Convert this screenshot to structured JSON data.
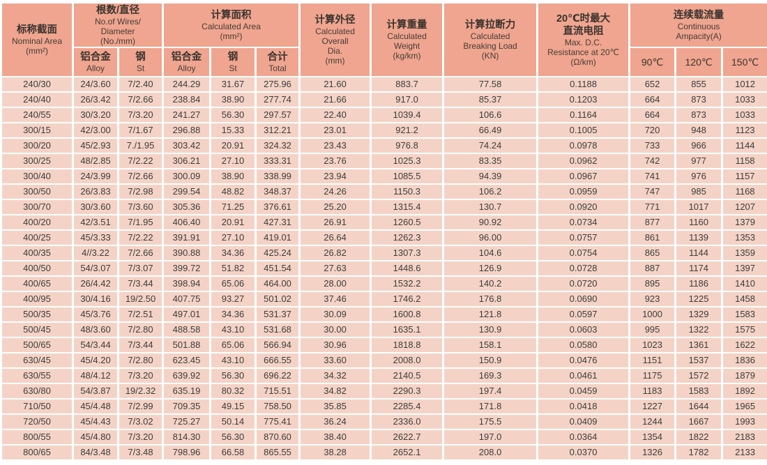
{
  "colors": {
    "header_bg": "#efa58f",
    "cell_bg": "#f4d3c6",
    "grid_lines": "#ffffff",
    "text": "#3c3c3c"
  },
  "table": {
    "header": {
      "nominal_area": {
        "zh": "标称截面",
        "en": "Nominal Area",
        "unit": "(mm²)"
      },
      "wires_diameter": {
        "zh": "根数/直径",
        "en1": "No.of Wires/",
        "en2": "Diameter",
        "unit": "(No./mm)"
      },
      "calculated_area": {
        "zh": "计算面积",
        "en": "Calculated Area",
        "unit": "(mm²)"
      },
      "overall_dia": {
        "zh": "计算外径",
        "en1": "Calculated",
        "en2": "Overall",
        "en3": "Dia.",
        "unit": "(mm)"
      },
      "weight": {
        "zh": "计算重量",
        "en1": "Calculated",
        "en2": "Weight",
        "unit": "(kg/km)"
      },
      "breaking_load": {
        "zh": "计算拉断力",
        "en1": "Calculated",
        "en2": "Breaking Load",
        "unit": "(KN)"
      },
      "dc_resistance": {
        "zh1": "20℃时最大",
        "zh2": "直流电阻",
        "en1": "Max. D.C.",
        "en2": "Resistance at 20℃",
        "unit": "(Ω/km)"
      },
      "ampacity": {
        "zh": "连续载流量",
        "en1": "Continuous",
        "en2": "Ampacity(A)"
      },
      "sub": {
        "alloy": {
          "zh": "铝合金",
          "en": "Alloy"
        },
        "steel": {
          "zh": "钢",
          "en": "St"
        },
        "total": {
          "zh": "合计",
          "en": "Total"
        },
        "t90": "90℃",
        "t120": "120℃",
        "t150": "150℃"
      }
    },
    "rows": [
      [
        "240/30",
        "24/3.60",
        "7/2.40",
        "244.29",
        "31.67",
        "275.96",
        "21.60",
        "883.7",
        "77.58",
        "0.1188",
        "652",
        "855",
        "1012"
      ],
      [
        "240/40",
        "26/3.42",
        "7/2.66",
        "238.84",
        "38.90",
        "277.74",
        "21.66",
        "917.0",
        "85.37",
        "0.1203",
        "664",
        "873",
        "1033"
      ],
      [
        "240/55",
        "30/3.20",
        "7/3.20",
        "241.27",
        "56.30",
        "297.57",
        "22.40",
        "1039.4",
        "106.6",
        "0.1164",
        "664",
        "873",
        "1033"
      ],
      [
        "300/15",
        "42/3.00",
        "7/1.67",
        "296.88",
        "15.33",
        "312.21",
        "23.01",
        "921.2",
        "66.49",
        "0.1005",
        "720",
        "948",
        "1123"
      ],
      [
        "300/20",
        "45/2.93",
        "7./1.95",
        "303.42",
        "20.91",
        "324.32",
        "23.43",
        "976.8",
        "74.24",
        "0.0978",
        "733",
        "966",
        "1144"
      ],
      [
        "300/25",
        "48/2.85",
        "7/2.22",
        "306.21",
        "27.10",
        "333.31",
        "23.76",
        "1025.3",
        "83.35",
        "0.0962",
        "742",
        "977",
        "1158"
      ],
      [
        "300/40",
        "24/3.99",
        "7/2.66",
        "300.09",
        "38.90",
        "338.99",
        "23.94",
        "1085.5",
        "94.39",
        "0.0967",
        "741",
        "976",
        "1157"
      ],
      [
        "300/50",
        "26/3.83",
        "7/2.98",
        "299.54",
        "48.82",
        "348.37",
        "24.26",
        "1150.3",
        "106.2",
        "0.0959",
        "747",
        "985",
        "1168"
      ],
      [
        "300/70",
        "30/3.60",
        "7/3.60",
        "305.36",
        "71.25",
        "376.61",
        "25.20",
        "1315.4",
        "130.7",
        "0.0920",
        "771",
        "1017",
        "1207"
      ],
      [
        "400/20",
        "42/3.51",
        "7/1.95",
        "406.40",
        "20.91",
        "427.31",
        "26.91",
        "1260.5",
        "90.92",
        "0.0734",
        "877",
        "1160",
        "1379"
      ],
      [
        "400/25",
        "45/3.33",
        "7/2.22",
        "391.91",
        "27.10",
        "419.01",
        "26.64",
        "1262.3",
        "96.00",
        "0.0757",
        "861",
        "1139",
        "1353"
      ],
      [
        "400/35",
        "4//3.22",
        "7/2.66",
        "390.88",
        "34.36",
        "425.24",
        "26.82",
        "1307.3",
        "104.6",
        "0.0754",
        "865",
        "1144",
        "1359"
      ],
      [
        "400/50",
        "54/3.07",
        "7/3.07",
        "399.72",
        "51.82",
        "451.54",
        "27.63",
        "1448.6",
        "126.9",
        "0.0728",
        "887",
        "1174",
        "1397"
      ],
      [
        "400/65",
        "26/4.42",
        "7/3.44",
        "398.94",
        "65.06",
        "464.00",
        "28.00",
        "1532.2",
        "140.2",
        "0.0720",
        "895",
        "1186",
        "1410"
      ],
      [
        "400/95",
        "30/4.16",
        "19/2.50",
        "407.75",
        "93.27",
        "501.02",
        "37.46",
        "1746.2",
        "176.8",
        "0.0690",
        "923",
        "1225",
        "1458"
      ],
      [
        "500/35",
        "45/3.76",
        "7/2.51",
        "497.01",
        "34.36",
        "531.37",
        "30.09",
        "1600.8",
        "121.8",
        "0.0597",
        "1000",
        "1329",
        "1583"
      ],
      [
        "500/45",
        "48/3.60",
        "7/2.80",
        "488.58",
        "43.10",
        "531.68",
        "30.00",
        "1635.1",
        "130.9",
        "0.0603",
        "995",
        "1322",
        "1575"
      ],
      [
        "500/65",
        "54/3.44",
        "7/3.44",
        "501.88",
        "65.06",
        "566.94",
        "30.96",
        "1818.8",
        "158.1",
        "0.0580",
        "1023",
        "1361",
        "1622"
      ],
      [
        "630/45",
        "45/4.20",
        "7/2.80",
        "623.45",
        "43.10",
        "666.55",
        "33.60",
        "2008.0",
        "150.9",
        "0.0476",
        "1151",
        "1537",
        "1836"
      ],
      [
        "630/55",
        "48/4.12",
        "7/3.20",
        "639.92",
        "56.30",
        "696.22",
        "34.32",
        "2140.5",
        "169.3",
        "0.0461",
        "1175",
        "1572",
        "1879"
      ],
      [
        "630/80",
        "54/3.87",
        "19/2.32",
        "635.19",
        "80.32",
        "715.51",
        "34.82",
        "2290.3",
        "197.4",
        "0.0459",
        "1183",
        "1583",
        "1892"
      ],
      [
        "710/50",
        "45/4.48",
        "7/2.99",
        "709.35",
        "49.15",
        "758.50",
        "35.85",
        "2285.4",
        "171.8",
        "0.0418",
        "1227",
        "1644",
        "1965"
      ],
      [
        "720/50",
        "45/4.43",
        "7/3.02",
        "725.27",
        "50.14",
        "775.41",
        "36.24",
        "2336.0",
        "175.5",
        "0.0409",
        "1244",
        "1667",
        "1993"
      ],
      [
        "800/55",
        "45/4.80",
        "7/3.20",
        "814.30",
        "56.30",
        "870.60",
        "38.40",
        "2622.7",
        "197.0",
        "0.0364",
        "1354",
        "1822",
        "2183"
      ],
      [
        "800/65",
        "84/3.48",
        "7/3.48",
        "798.96",
        "66.58",
        "865.55",
        "38.28",
        "2652.1",
        "208.0",
        "0.0370",
        "1326",
        "1782",
        "2133"
      ]
    ]
  }
}
